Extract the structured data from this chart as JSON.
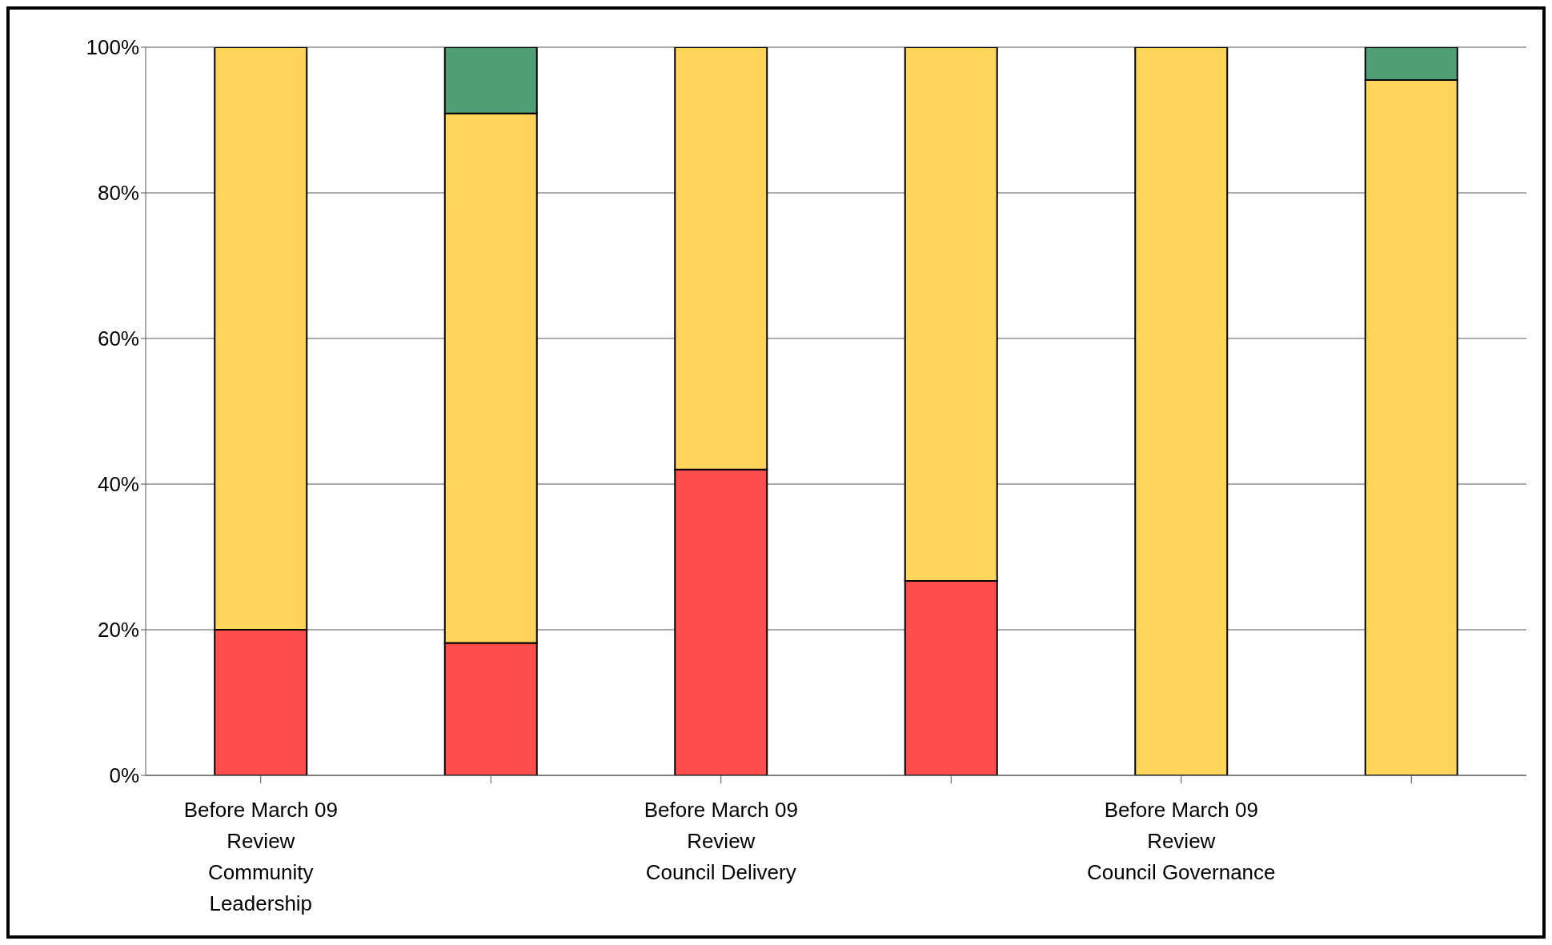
{
  "chart_data": {
    "type": "bar",
    "stacked": true,
    "categories": [
      "Before March 09\nReview\nCommunity\nLeadership",
      null,
      "Before March 09\nReview\nCouncil Delivery",
      null,
      "Before March 09\nReview\nCouncil Governance",
      null
    ],
    "series": [
      {
        "color": "#ff4d4d",
        "values": [
          20,
          18.2,
          42,
          26.7,
          0,
          0
        ]
      },
      {
        "color": "#fed45a",
        "values": [
          80,
          72.7,
          58,
          73.3,
          100,
          95.5
        ]
      },
      {
        "color": "#4f9f74",
        "values": [
          0,
          9.1,
          0,
          0,
          0,
          4.5
        ]
      }
    ],
    "ylim": [
      0,
      100
    ],
    "yticks": [
      {
        "value": 0,
        "label": "0%"
      },
      {
        "value": 20,
        "label": "20%"
      },
      {
        "value": 40,
        "label": "40%"
      },
      {
        "value": 60,
        "label": "60%"
      },
      {
        "value": 80,
        "label": "80%"
      },
      {
        "value": 100,
        "label": "100%"
      }
    ],
    "grid": "y",
    "legend": false
  }
}
